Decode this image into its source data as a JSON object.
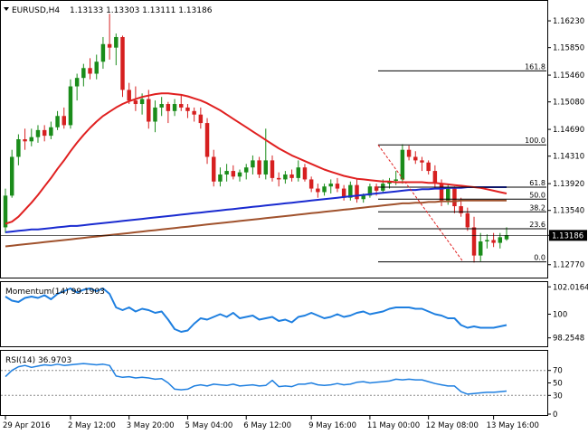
{
  "header": {
    "symbol": "EURUSD,H4",
    "ohlc": "1.13133 1.13303 1.13111 1.13186",
    "momentum_label": "Momentum(14) 99.1903",
    "rsi_label": "RSI(14) 36.9703"
  },
  "colors": {
    "bull": "#1a8c1a",
    "bear": "#d62020",
    "sma_fast": "#e02020",
    "sma_mid": "#1a2bd0",
    "sma_slow": "#a0522d",
    "momentum": "#1e7fe0",
    "rsi": "#1e7fe0",
    "fib_line": "#000000",
    "fib_diag": "#e02020",
    "current_price_line": "#000000"
  },
  "chart_data": [
    {
      "type": "candlestick",
      "title": "EURUSD,H4",
      "ylim": [
        1.126,
        1.165
      ],
      "y_ticks": [
        "1.16230",
        "1.15850",
        "1.15460",
        "1.15080",
        "1.14690",
        "1.14310",
        "1.13920",
        "1.13540",
        "1.13186",
        "1.12770"
      ],
      "x_ticks": [
        "29 Apr 2016",
        "2 May 12:00",
        "3 May 20:00",
        "5 May 04:00",
        "6 May 12:00",
        "9 May 16:00",
        "11 May 00:00",
        "12 May 08:00",
        "13 May 16:00"
      ],
      "current_price": 1.13186,
      "candles": [
        [
          1.133,
          1.1385,
          1.1322,
          1.1375
        ],
        [
          1.1375,
          1.144,
          1.1372,
          1.143
        ],
        [
          1.143,
          1.1462,
          1.1418,
          1.1455
        ],
        [
          1.1455,
          1.147,
          1.144,
          1.1452
        ],
        [
          1.1452,
          1.147,
          1.1445,
          1.1458
        ],
        [
          1.1458,
          1.1475,
          1.145,
          1.1468
        ],
        [
          1.1468,
          1.1475,
          1.1452,
          1.146
        ],
        [
          1.146,
          1.148,
          1.1455,
          1.1472
        ],
        [
          1.1472,
          1.1495,
          1.1468,
          1.1488
        ],
        [
          1.1488,
          1.15,
          1.147,
          1.1475
        ],
        [
          1.1475,
          1.154,
          1.147,
          1.153
        ],
        [
          1.153,
          1.1548,
          1.151,
          1.1542
        ],
        [
          1.1542,
          1.1562,
          1.153,
          1.1556
        ],
        [
          1.1556,
          1.157,
          1.154,
          1.1548
        ],
        [
          1.1548,
          1.1575,
          1.154,
          1.1565
        ],
        [
          1.1565,
          1.16,
          1.1555,
          1.159
        ],
        [
          1.159,
          1.1633,
          1.1568,
          1.1585
        ],
        [
          1.1585,
          1.1605,
          1.156,
          1.16
        ],
        [
          1.16,
          1.1602,
          1.1515,
          1.1525
        ],
        [
          1.1525,
          1.1535,
          1.1505,
          1.151
        ],
        [
          1.151,
          1.153,
          1.1495,
          1.1505
        ],
        [
          1.1505,
          1.152,
          1.149,
          1.1512
        ],
        [
          1.1512,
          1.1525,
          1.147,
          1.148
        ],
        [
          1.148,
          1.151,
          1.1465,
          1.15
        ],
        [
          1.15,
          1.1515,
          1.1488,
          1.1505
        ],
        [
          1.1505,
          1.1508,
          1.1478,
          1.1495
        ],
        [
          1.1495,
          1.1512,
          1.1488,
          1.1505
        ],
        [
          1.1505,
          1.1518,
          1.1495,
          1.15
        ],
        [
          1.15,
          1.1505,
          1.1485,
          1.1495
        ],
        [
          1.1495,
          1.15,
          1.148,
          1.149
        ],
        [
          1.149,
          1.15,
          1.147,
          1.1478
        ],
        [
          1.1478,
          1.1485,
          1.142,
          1.143
        ],
        [
          1.143,
          1.144,
          1.1388,
          1.1395
        ],
        [
          1.1395,
          1.1415,
          1.1388,
          1.1405
        ],
        [
          1.1405,
          1.142,
          1.1395,
          1.141
        ],
        [
          1.141,
          1.1418,
          1.1398,
          1.1402
        ],
        [
          1.1402,
          1.1412,
          1.1395,
          1.1408
        ],
        [
          1.1408,
          1.142,
          1.1398,
          1.1415
        ],
        [
          1.1415,
          1.1432,
          1.1405,
          1.1425
        ],
        [
          1.1425,
          1.143,
          1.14,
          1.1405
        ],
        [
          1.1405,
          1.147,
          1.1398,
          1.1425
        ],
        [
          1.1425,
          1.1432,
          1.1395,
          1.14
        ],
        [
          1.14,
          1.1408,
          1.1388,
          1.1398
        ],
        [
          1.1398,
          1.141,
          1.1392,
          1.1405
        ],
        [
          1.1405,
          1.1412,
          1.1395,
          1.14
        ],
        [
          1.14,
          1.1425,
          1.1395,
          1.1415
        ],
        [
          1.1415,
          1.142,
          1.1395,
          1.1398
        ],
        [
          1.1398,
          1.1402,
          1.138,
          1.1385
        ],
        [
          1.1385,
          1.1392,
          1.1372,
          1.138
        ],
        [
          1.138,
          1.1392,
          1.1375,
          1.1388
        ],
        [
          1.1388,
          1.1398,
          1.1378,
          1.1392
        ],
        [
          1.1392,
          1.14,
          1.138,
          1.1385
        ],
        [
          1.1385,
          1.139,
          1.1368,
          1.1372
        ],
        [
          1.1372,
          1.1395,
          1.1368,
          1.139
        ],
        [
          1.139,
          1.1398,
          1.1365,
          1.137
        ],
        [
          1.137,
          1.1378,
          1.1365,
          1.1375
        ],
        [
          1.1375,
          1.1392,
          1.1372,
          1.1388
        ],
        [
          1.1388,
          1.1392,
          1.1375,
          1.1382
        ],
        [
          1.1382,
          1.1398,
          1.1378,
          1.1392
        ],
        [
          1.1392,
          1.14,
          1.1385,
          1.1396
        ],
        [
          1.1396,
          1.141,
          1.139,
          1.1398
        ],
        [
          1.1398,
          1.1448,
          1.1392,
          1.144
        ],
        [
          1.144,
          1.1446,
          1.1425,
          1.143
        ],
        [
          1.143,
          1.1438,
          1.142,
          1.1425
        ],
        [
          1.1425,
          1.143,
          1.141,
          1.1422
        ],
        [
          1.1422,
          1.1425,
          1.1405,
          1.141
        ],
        [
          1.141,
          1.1418,
          1.1385,
          1.1392
        ],
        [
          1.1392,
          1.1398,
          1.136,
          1.1368
        ],
        [
          1.1368,
          1.1392,
          1.1362,
          1.1385
        ],
        [
          1.1385,
          1.1388,
          1.135,
          1.136
        ],
        [
          1.136,
          1.1372,
          1.1345,
          1.135
        ],
        [
          1.135,
          1.1358,
          1.1325,
          1.133
        ],
        [
          1.133,
          1.1345,
          1.128,
          1.129
        ],
        [
          1.129,
          1.1322,
          1.1282,
          1.131
        ],
        [
          1.131,
          1.132,
          1.13,
          1.1312
        ],
        [
          1.1312,
          1.1322,
          1.1302,
          1.1308
        ],
        [
          1.1308,
          1.1322,
          1.13,
          1.1316
        ],
        [
          1.1313,
          1.133,
          1.1311,
          1.1319
        ]
      ],
      "sma_fast": [
        1.1335,
        1.1338,
        1.1345,
        1.1355,
        1.1365,
        1.1376,
        1.1388,
        1.14,
        1.1413,
        1.1425,
        1.1438,
        1.145,
        1.1461,
        1.1471,
        1.148,
        1.1488,
        1.1494,
        1.15,
        1.1505,
        1.1509,
        1.1512,
        1.1515,
        1.1517,
        1.1519,
        1.152,
        1.152,
        1.1519,
        1.1518,
        1.1516,
        1.1513,
        1.151,
        1.1506,
        1.1501,
        1.1496,
        1.149,
        1.1484,
        1.1478,
        1.1472,
        1.1466,
        1.146,
        1.1454,
        1.1448,
        1.1442,
        1.1437,
        1.1432,
        1.1428,
        1.1424,
        1.142,
        1.1416,
        1.1412,
        1.1409,
        1.1406,
        1.1403,
        1.1401,
        1.1399,
        1.1398,
        1.1397,
        1.1396,
        1.1395,
        1.1395,
        1.1394,
        1.1394,
        1.1394,
        1.1394,
        1.1394,
        1.1393,
        1.1393,
        1.1392,
        1.1391,
        1.139,
        1.1389,
        1.1388,
        1.1387,
        1.1386,
        1.1384,
        1.1382,
        1.138,
        1.1378
      ],
      "sma_mid": [
        1.1323,
        1.1324,
        1.1325,
        1.1326,
        1.1327,
        1.1327,
        1.1328,
        1.1329,
        1.133,
        1.1331,
        1.1332,
        1.1332,
        1.1333,
        1.1334,
        1.1335,
        1.1336,
        1.1337,
        1.1338,
        1.1339,
        1.134,
        1.1341,
        1.1342,
        1.1343,
        1.1344,
        1.1345,
        1.1346,
        1.1347,
        1.1348,
        1.1349,
        1.135,
        1.1351,
        1.1352,
        1.1353,
        1.1354,
        1.1355,
        1.1356,
        1.1357,
        1.1358,
        1.1359,
        1.136,
        1.1361,
        1.1362,
        1.1363,
        1.1364,
        1.1365,
        1.1366,
        1.1367,
        1.1368,
        1.1369,
        1.137,
        1.1371,
        1.1372,
        1.1373,
        1.1374,
        1.1375,
        1.1376,
        1.1377,
        1.1378,
        1.1379,
        1.138,
        1.1381,
        1.1382,
        1.1383,
        1.1383,
        1.1384,
        1.1384,
        1.1385,
        1.1385,
        1.1386,
        1.1386,
        1.1386,
        1.1387,
        1.1387,
        1.1387,
        1.1387,
        1.1387,
        1.1387,
        1.1387
      ],
      "sma_slow": [
        1.1303,
        1.1304,
        1.1305,
        1.1306,
        1.1307,
        1.1308,
        1.1309,
        1.131,
        1.1311,
        1.1312,
        1.1313,
        1.1314,
        1.1315,
        1.1316,
        1.1317,
        1.1318,
        1.1319,
        1.132,
        1.1321,
        1.1322,
        1.1323,
        1.1324,
        1.1325,
        1.1326,
        1.1327,
        1.1328,
        1.1329,
        1.133,
        1.1331,
        1.1332,
        1.1333,
        1.1334,
        1.1335,
        1.1336,
        1.1337,
        1.1338,
        1.1339,
        1.134,
        1.1341,
        1.1342,
        1.1343,
        1.1344,
        1.1345,
        1.1346,
        1.1347,
        1.1348,
        1.1349,
        1.135,
        1.1351,
        1.1352,
        1.1353,
        1.1354,
        1.1355,
        1.1356,
        1.1357,
        1.1358,
        1.1359,
        1.136,
        1.1361,
        1.1362,
        1.1363,
        1.1364,
        1.1364,
        1.1365,
        1.1365,
        1.1366,
        1.1366,
        1.1367,
        1.1367,
        1.1367,
        1.1368,
        1.1368,
        1.1368,
        1.1368,
        1.1368,
        1.1368,
        1.1368,
        1.1368
      ],
      "fibonacci": {
        "levels": [
          {
            "label": "161.8",
            "price": 1.1552
          },
          {
            "label": "100.0",
            "price": 1.1447
          },
          {
            "label": "61.8",
            "price": 1.1387
          },
          {
            "label": "50.0",
            "price": 1.137
          },
          {
            "label": "38.2",
            "price": 1.1352
          },
          {
            "label": "23.6",
            "price": 1.1328
          },
          {
            "label": "0.0",
            "price": 1.1281
          }
        ]
      }
    },
    {
      "type": "line",
      "title": "Momentum(14) 99.1903",
      "ylim": [
        97.7,
        102.3
      ],
      "y_ticks": [
        "102.0164",
        "100",
        "98.2548"
      ],
      "series": [
        {
          "values": [
            101.3,
            101.0,
            100.9,
            101.2,
            101.3,
            101.2,
            101.4,
            101.1,
            101.5,
            101.7,
            101.9,
            101.6,
            101.8,
            101.9,
            101.7,
            101.9,
            101.5,
            100.5,
            100.3,
            100.5,
            100.2,
            100.4,
            100.3,
            100.1,
            100.2,
            99.6,
            98.9,
            98.7,
            98.8,
            99.3,
            99.7,
            99.6,
            99.8,
            100.0,
            99.8,
            100.1,
            99.7,
            99.8,
            99.9,
            99.6,
            99.7,
            99.8,
            99.5,
            99.6,
            99.4,
            99.8,
            99.9,
            100.1,
            99.9,
            99.7,
            99.8,
            100.0,
            99.8,
            99.9,
            100.1,
            100.2,
            100.0,
            100.1,
            100.2,
            100.4,
            100.5,
            100.5,
            100.5,
            100.4,
            100.4,
            100.2,
            100.0,
            99.9,
            99.7,
            99.7,
            99.2,
            99.0,
            99.1,
            99.0,
            99.0,
            99.0,
            99.1,
            99.2
          ]
        }
      ]
    },
    {
      "type": "line",
      "title": "RSI(14) 36.9703",
      "ylim": [
        0,
        100
      ],
      "y_ticks": [
        "70",
        "50",
        "30",
        "0"
      ],
      "series": [
        {
          "values": [
            60,
            70,
            76,
            78,
            75,
            77,
            79,
            78,
            80,
            78,
            79,
            80,
            81,
            80,
            79,
            80,
            78,
            61,
            59,
            60,
            58,
            59,
            58,
            56,
            57,
            50,
            40,
            39,
            40,
            45,
            47,
            45,
            48,
            47,
            46,
            48,
            45,
            46,
            47,
            45,
            46,
            54,
            44,
            45,
            44,
            48,
            48,
            50,
            47,
            46,
            47,
            49,
            47,
            48,
            51,
            52,
            50,
            51,
            52,
            53,
            56,
            55,
            56,
            55,
            55,
            52,
            49,
            47,
            45,
            45,
            36,
            32,
            33,
            34,
            35,
            35,
            36,
            37
          ]
        }
      ]
    }
  ]
}
